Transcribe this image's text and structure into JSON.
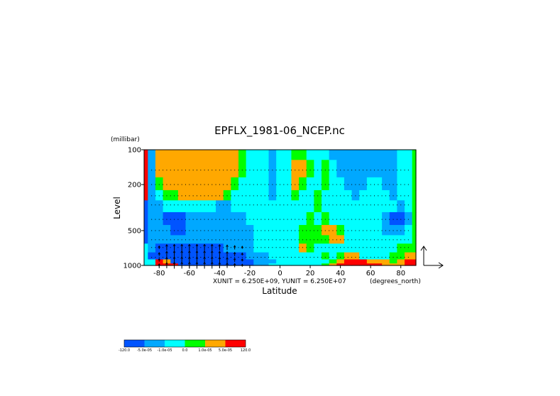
{
  "chart_data": {
    "type": "heatmap",
    "title": "EPFLX_1981-06_NCEP.nc",
    "xlabel": "Latitude",
    "x_units": "(degrees_north)",
    "ylabel": "Level",
    "y_units": "(millibar)",
    "xlim": [
      -90,
      90
    ],
    "ylim": [
      1000,
      100
    ],
    "y_scale": "log",
    "x_ticks": [
      -80,
      -60,
      -40,
      -20,
      0,
      20,
      40,
      60,
      80
    ],
    "y_ticks": [
      100,
      200,
      500,
      1000
    ],
    "vector_caption": "XUNIT = 6.250E+09, YUNIT = 6.250E+07",
    "colorbar": {
      "colors": [
        "#0054ff",
        "#00a8ff",
        "#00ffff",
        "#00ff00",
        "#ffa800",
        "#ff0000"
      ],
      "labels": [
        "-120.0",
        "-5.0e-05",
        "-1.0e-05",
        "0.0",
        "1.0e-05",
        "5.0e-05",
        "120.0"
      ]
    },
    "colormap": {
      "-3": "#0054ff",
      "-2": "#00a8ff",
      "-1": "#00ffff",
      "1": "#00ff00",
      "2": "#ffa800",
      "3": "#ff0000"
    },
    "grid": {
      "lat": [
        -90,
        -85,
        -80,
        -75,
        -70,
        -65,
        -60,
        -55,
        -50,
        -45,
        -40,
        -35,
        -30,
        -25,
        -20,
        -15,
        -10,
        -5,
        0,
        5,
        10,
        15,
        20,
        25,
        30,
        35,
        40,
        45,
        50,
        55,
        60,
        65,
        70,
        75,
        80,
        85,
        90
      ],
      "lev": [
        100,
        150,
        200,
        250,
        300,
        400,
        500,
        600,
        700,
        850,
        925,
        1000
      ],
      "z": [
        [
          3,
          -2,
          2,
          2,
          2,
          2,
          2,
          2,
          2,
          2,
          2,
          2,
          2,
          1,
          -1,
          -1,
          -1,
          -2,
          -1,
          -1,
          1,
          1,
          -1,
          -1,
          -1,
          -2,
          -2,
          -2,
          -2,
          -2,
          -2,
          -2,
          -2,
          -2,
          -1,
          -1,
          1
        ],
        [
          3,
          -2,
          2,
          2,
          2,
          2,
          2,
          2,
          2,
          2,
          2,
          2,
          2,
          1,
          -1,
          -1,
          -1,
          -2,
          -1,
          -1,
          2,
          2,
          1,
          -1,
          1,
          -1,
          -2,
          -2,
          -2,
          -2,
          -2,
          -2,
          -2,
          -2,
          -1,
          -1,
          1
        ],
        [
          3,
          -2,
          1,
          2,
          2,
          2,
          2,
          2,
          2,
          2,
          2,
          2,
          1,
          -1,
          -1,
          -1,
          -1,
          -2,
          -1,
          -1,
          2,
          1,
          -1,
          -1,
          1,
          -1,
          -1,
          -2,
          -2,
          -2,
          -1,
          -1,
          -2,
          -2,
          -1,
          -1,
          1
        ],
        [
          3,
          -2,
          -1,
          1,
          1,
          2,
          2,
          2,
          2,
          2,
          2,
          1,
          -1,
          -1,
          -1,
          -1,
          -1,
          -2,
          -1,
          -1,
          1,
          -1,
          -1,
          1,
          -1,
          -1,
          -1,
          -1,
          -2,
          -1,
          -1,
          -1,
          -1,
          -2,
          -1,
          -1,
          1
        ],
        [
          -3,
          -2,
          -2,
          -1,
          -1,
          -1,
          -1,
          -1,
          -1,
          -1,
          -2,
          -2,
          -1,
          -1,
          -1,
          -1,
          -1,
          -1,
          -1,
          -1,
          -1,
          -1,
          -1,
          1,
          -1,
          -1,
          -1,
          -1,
          -1,
          -1,
          -1,
          -1,
          -1,
          -1,
          -2,
          -1,
          1
        ],
        [
          -3,
          -2,
          -2,
          -3,
          -3,
          -3,
          -2,
          -2,
          -2,
          -2,
          -2,
          -2,
          -2,
          -2,
          -1,
          -1,
          -1,
          -1,
          -1,
          -1,
          -1,
          -1,
          1,
          -1,
          1,
          -1,
          -1,
          -1,
          -1,
          -1,
          -1,
          -1,
          -2,
          -3,
          -3,
          -2,
          1
        ],
        [
          -3,
          -2,
          -2,
          -2,
          -3,
          -3,
          -2,
          -2,
          -2,
          -2,
          -2,
          -2,
          -2,
          -2,
          -2,
          -1,
          -1,
          -1,
          -1,
          -1,
          -1,
          1,
          1,
          1,
          2,
          2,
          1,
          -1,
          -1,
          -1,
          -1,
          -1,
          -2,
          -2,
          -2,
          -1,
          1
        ],
        [
          -3,
          -2,
          -2,
          -2,
          -2,
          -2,
          -2,
          -2,
          -2,
          -2,
          -2,
          -2,
          -2,
          -2,
          -2,
          -1,
          -1,
          -1,
          -1,
          -1,
          -1,
          1,
          1,
          1,
          1,
          2,
          2,
          -1,
          -1,
          -1,
          -1,
          -1,
          -1,
          -1,
          -1,
          -1,
          1
        ],
        [
          -1,
          -2,
          -3,
          -3,
          -3,
          -3,
          -3,
          -3,
          -3,
          -3,
          -3,
          -2,
          -2,
          -2,
          -2,
          -1,
          -1,
          -1,
          -1,
          -1,
          -1,
          2,
          1,
          -1,
          -1,
          -1,
          -1,
          -1,
          -1,
          -1,
          -1,
          -1,
          -1,
          -1,
          1,
          1,
          1
        ],
        [
          -1,
          -3,
          -3,
          -3,
          -3,
          -3,
          -3,
          -3,
          -3,
          -3,
          -3,
          -3,
          -3,
          -3,
          -2,
          -2,
          -2,
          -1,
          -1,
          -1,
          -1,
          -1,
          -1,
          -1,
          1,
          -1,
          1,
          2,
          2,
          -1,
          -1,
          -1,
          -1,
          1,
          1,
          2,
          2
        ],
        [
          -1,
          -1,
          3,
          2,
          -3,
          -3,
          -3,
          -3,
          -3,
          -3,
          -3,
          -3,
          -3,
          -3,
          -3,
          -2,
          -2,
          -2,
          -1,
          -1,
          -1,
          -1,
          -1,
          -1,
          -1,
          1,
          2,
          3,
          3,
          3,
          2,
          2,
          2,
          1,
          2,
          3,
          3
        ],
        [
          -1,
          -1,
          3,
          3,
          3,
          -3,
          -3,
          -3,
          -3,
          -3,
          -3,
          -3,
          -3,
          -3,
          -3,
          -2,
          -2,
          -1,
          -1,
          -1,
          -1,
          -1,
          -1,
          -1,
          1,
          2,
          3,
          3,
          3,
          3,
          3,
          3,
          2,
          2,
          2,
          3,
          3
        ]
      ]
    },
    "vectors": {
      "lat": [
        -80,
        -75,
        -70,
        -65,
        -60,
        -55,
        -50,
        -45,
        -40,
        -35,
        -30,
        -25
      ],
      "lev": [
        700,
        800,
        900,
        1000
      ],
      "u": 0,
      "v": [
        [
          0.5,
          0.9,
          1.0,
          1.0,
          1.0,
          1.0,
          1.0,
          1.0,
          0.9,
          0.8,
          0.6,
          0.4
        ],
        [
          0.5,
          0.9,
          1.0,
          1.0,
          1.0,
          1.0,
          1.0,
          1.0,
          0.9,
          0.8,
          0.6,
          0.4
        ],
        [
          0.5,
          0.9,
          1.0,
          1.0,
          1.0,
          1.0,
          1.0,
          1.0,
          0.9,
          0.8,
          0.6,
          0.4
        ],
        [
          0.5,
          0.9,
          1.0,
          1.0,
          1.0,
          1.0,
          1.0,
          1.0,
          0.9,
          0.8,
          0.6,
          0.4
        ]
      ]
    }
  }
}
